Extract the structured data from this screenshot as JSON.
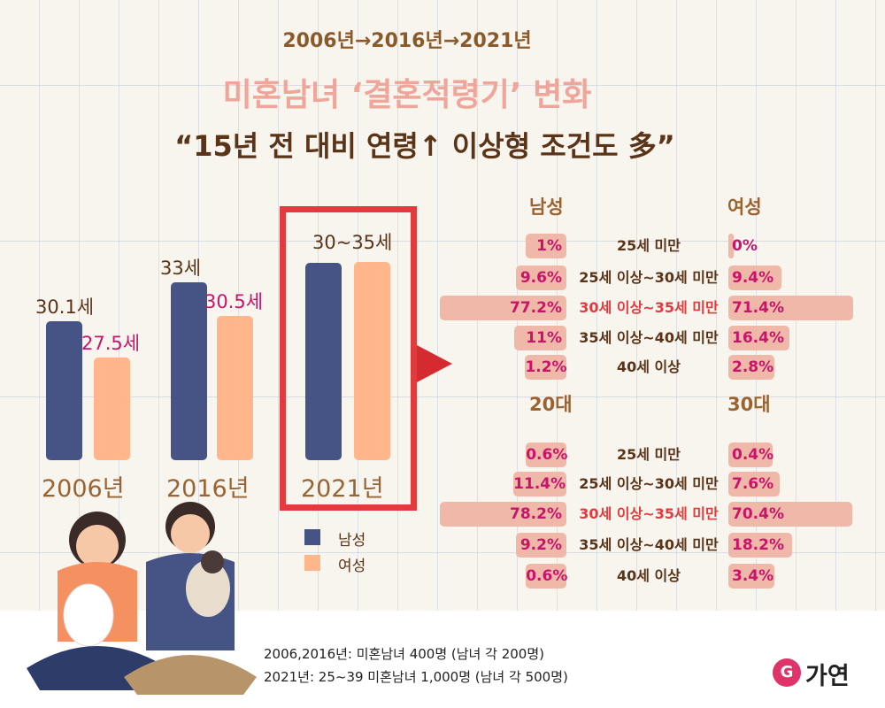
{
  "header": {
    "timeline": "2006년→2016년→2021년",
    "title": "미혼남녀 ‘결혼적령기’ 변화",
    "subtitle": "“15년 전 대비 연령↑ 이상형 조건도 多”"
  },
  "colors": {
    "male": "#465385",
    "female": "#ffb68a",
    "highlight": "#e03c3e",
    "pct_bar": "#f0b8a8",
    "pct_text": "#c8146a"
  },
  "chart_data": [
    {
      "type": "bar",
      "categories": [
        "2006년",
        "2016년",
        "2021년"
      ],
      "series": [
        {
          "name": "남성",
          "values": [
            30.1,
            33,
            null
          ],
          "labels": [
            "30.1세",
            "33세",
            ""
          ]
        },
        {
          "name": "여성",
          "values": [
            27.5,
            30.5,
            null
          ],
          "labels": [
            "27.5세",
            "30.5세",
            ""
          ]
        }
      ],
      "range_2021_label": "30~35세",
      "legend": [
        "남성",
        "여성"
      ],
      "legend_position": "bottom"
    },
    {
      "type": "bar",
      "orientation": "horizontal",
      "groups": [
        "남성",
        "여성"
      ],
      "categories": [
        "25세 미만",
        "25세 이상~30세 미만",
        "30세 이상~35세 미만",
        "35세 이상~40세 미만",
        "40세 이상"
      ],
      "series": [
        {
          "name": "남성",
          "values": [
            1,
            9.6,
            77.2,
            11,
            1.2
          ],
          "labels": [
            "1%",
            "9.6%",
            "77.2%",
            "11%",
            "1.2%"
          ]
        },
        {
          "name": "여성",
          "values": [
            0,
            9.4,
            71.4,
            16.4,
            2.8
          ],
          "labels": [
            "0%",
            "9.4%",
            "71.4%",
            "16.4%",
            "2.8%"
          ]
        }
      ]
    },
    {
      "type": "bar",
      "orientation": "horizontal",
      "groups": [
        "20대",
        "30대"
      ],
      "categories": [
        "25세 미만",
        "25세 이상~30세 미만",
        "30세 이상~35세 미만",
        "35세 이상~40세 미만",
        "40세 이상"
      ],
      "series": [
        {
          "name": "20대",
          "values": [
            0.6,
            11.4,
            78.2,
            9.2,
            0.6
          ],
          "labels": [
            "0.6%",
            "11.4%",
            "78.2%",
            "9.2%",
            "0.6%"
          ]
        },
        {
          "name": "30대",
          "values": [
            0.4,
            7.6,
            70.4,
            18.2,
            3.4
          ],
          "labels": [
            "0.4%",
            "7.6%",
            "70.4%",
            "18.2%",
            "3.4%"
          ]
        }
      ]
    }
  ],
  "footer": {
    "note1": "2006,2016년: 미혼남녀 400명 (남녀 각 200명)",
    "note2": "2021년: 25~39 미혼남녀 1,000명 (남녀 각 500명)",
    "logo": "가연"
  }
}
